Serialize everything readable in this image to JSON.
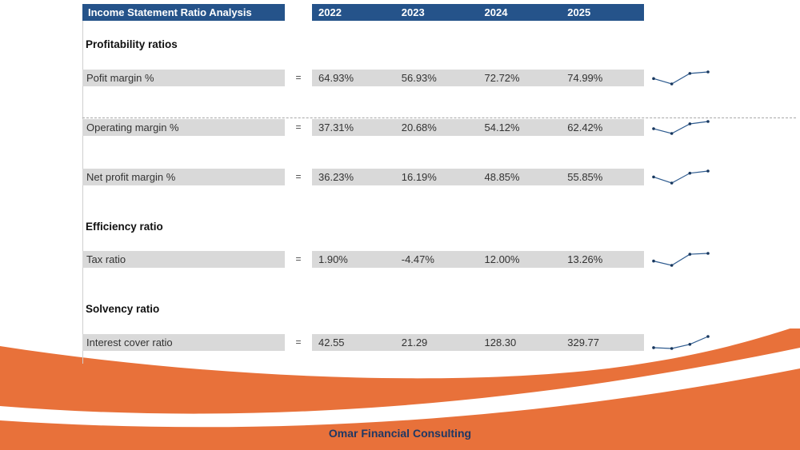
{
  "header": {
    "title": "Income Statement Ratio Analysis",
    "years": [
      "2022",
      "2023",
      "2024",
      "2025"
    ]
  },
  "sections": {
    "profitability": "Profitability ratios",
    "efficiency": "Efficiency ratio",
    "solvency": "Solvency ratio"
  },
  "table": {
    "rows": [
      {
        "label": "Pofit margin %",
        "eq": "=",
        "values": [
          "64.93%",
          "56.93%",
          "72.72%",
          "74.99%"
        ]
      },
      {
        "label": "Operating margin %",
        "eq": "=",
        "values": [
          "37.31%",
          "20.68%",
          "54.12%",
          "62.42%"
        ]
      },
      {
        "label": "Net profit margin %",
        "eq": "=",
        "values": [
          "36.23%",
          "16.19%",
          "48.85%",
          "55.85%"
        ]
      },
      {
        "label": "Tax ratio",
        "eq": "=",
        "values": [
          "1.90%",
          "-4.47%",
          "12.00%",
          "13.26%"
        ]
      },
      {
        "label": "Interest cover ratio",
        "eq": "=",
        "values": [
          "42.55",
          "21.29",
          "128.30",
          "329.77"
        ]
      }
    ]
  },
  "chart_data": [
    {
      "type": "line",
      "name": "Pofit margin %",
      "x": [
        "2022",
        "2023",
        "2024",
        "2025"
      ],
      "values": [
        64.93,
        56.93,
        72.72,
        74.99
      ],
      "unit": "%"
    },
    {
      "type": "line",
      "name": "Operating margin %",
      "x": [
        "2022",
        "2023",
        "2024",
        "2025"
      ],
      "values": [
        37.31,
        20.68,
        54.12,
        62.42
      ],
      "unit": "%"
    },
    {
      "type": "line",
      "name": "Net profit margin %",
      "x": [
        "2022",
        "2023",
        "2024",
        "2025"
      ],
      "values": [
        36.23,
        16.19,
        48.85,
        55.85
      ],
      "unit": "%"
    },
    {
      "type": "line",
      "name": "Tax ratio",
      "x": [
        "2022",
        "2023",
        "2024",
        "2025"
      ],
      "values": [
        1.9,
        -4.47,
        12.0,
        13.26
      ],
      "unit": "%"
    },
    {
      "type": "line",
      "name": "Interest cover ratio",
      "x": [
        "2022",
        "2023",
        "2024",
        "2025"
      ],
      "values": [
        42.55,
        21.29,
        128.3,
        329.77
      ],
      "unit": ""
    }
  ],
  "footer": {
    "brand": "Omar Financial Consulting"
  },
  "colors": {
    "navy_header": "#25538A",
    "cell_gray": "#D9D9D9",
    "orange": "#E8713A",
    "brand_navy": "#1F3864",
    "spark_line": "#2E5B8F",
    "spark_dot": "#17375E"
  }
}
